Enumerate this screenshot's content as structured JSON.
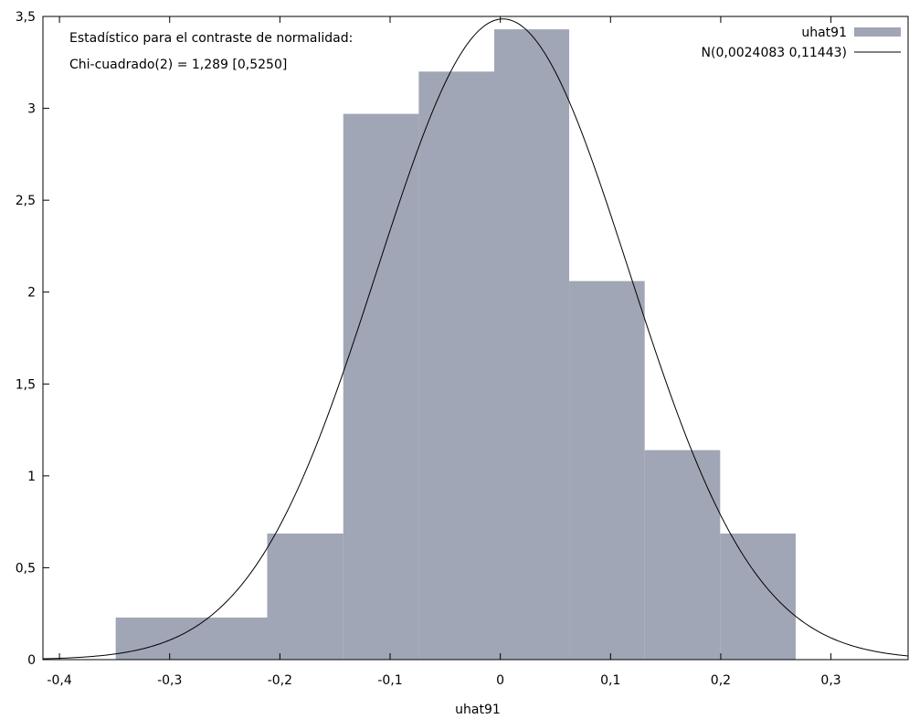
{
  "chart_data": {
    "type": "bar",
    "xlabel": "uhat91",
    "ylabel": "",
    "xlim": [
      -0.415,
      0.37
    ],
    "ylim": [
      0,
      3.5
    ],
    "x_ticks": [
      -0.4,
      -0.3,
      -0.2,
      -0.1,
      0,
      0.1,
      0.2,
      0.3
    ],
    "x_tick_labels": [
      "-0,4",
      "-0,3",
      "-0,2",
      "-0,1",
      "0",
      "0,1",
      "0,2",
      "0,3"
    ],
    "y_ticks": [
      0,
      0.5,
      1,
      1.5,
      2,
      2.5,
      3,
      3.5
    ],
    "y_tick_labels": [
      "0",
      "0,5",
      "1",
      "1,5",
      "2",
      "2,5",
      "3",
      "3,5"
    ],
    "grid": false,
    "legend_position": "top-right",
    "annotations": [
      "Estadístico para el contraste de normalidad:",
      "Chi-cuadrado(2) = 1,289 [0,5250]"
    ],
    "histogram": {
      "name": "uhat91",
      "color": "#a0a6b5",
      "bins": [
        {
          "x0": -0.349,
          "x1": -0.2115,
          "density": 0.229
        },
        {
          "x0": -0.2115,
          "x1": -0.1425,
          "density": 0.686
        },
        {
          "x0": -0.1425,
          "x1": -0.074,
          "density": 2.97
        },
        {
          "x0": -0.074,
          "x1": -0.0055,
          "density": 3.2
        },
        {
          "x0": -0.0055,
          "x1": 0.0625,
          "density": 3.43
        },
        {
          "x0": 0.0625,
          "x1": 0.131,
          "density": 2.06
        },
        {
          "x0": 0.131,
          "x1": 0.1995,
          "density": 1.14
        },
        {
          "x0": 0.1995,
          "x1": 0.268,
          "density": 0.686
        }
      ]
    },
    "normal_curve": {
      "name": "N(0,0024083 0,11443)",
      "mean": 0.0024083,
      "sd": 0.11443,
      "color": "#000000"
    }
  }
}
